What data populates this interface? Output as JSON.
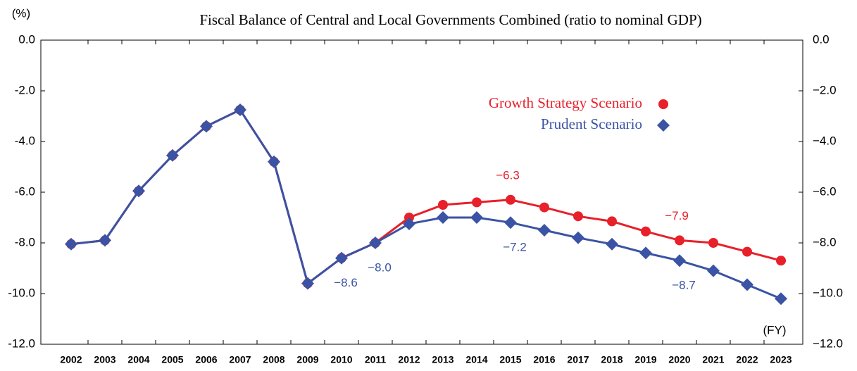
{
  "chart_data": {
    "type": "line",
    "title": "Fiscal Balance of Central and Local Governments Combined (ratio to nominal GDP)",
    "y_unit_label": "(%)",
    "x_unit_label": "(FY)",
    "categories": [
      "2002",
      "2003",
      "2004",
      "2005",
      "2006",
      "2007",
      "2008",
      "2009",
      "2010",
      "2011",
      "2012",
      "2013",
      "2014",
      "2015",
      "2016",
      "2017",
      "2018",
      "2019",
      "2020",
      "2021",
      "2022",
      "2023"
    ],
    "series": [
      {
        "name": "Growth Strategy Scenario",
        "color": "#e8202a",
        "marker": "circle",
        "values": [
          -8.05,
          -7.9,
          -5.95,
          -4.55,
          -3.4,
          -2.75,
          -4.8,
          -9.6,
          -8.6,
          -8.0,
          -7.0,
          -6.5,
          -6.4,
          -6.3,
          -6.6,
          -6.95,
          -7.15,
          -7.55,
          -7.9,
          -8.0,
          -8.35,
          -8.7
        ],
        "value_labels": [
          null,
          null,
          null,
          null,
          null,
          null,
          null,
          null,
          null,
          null,
          null,
          null,
          null,
          "−6.3",
          null,
          null,
          null,
          null,
          "−7.9",
          null,
          null,
          null
        ]
      },
      {
        "name": "Prudent Scenario",
        "color": "#3a53a4",
        "marker": "diamond",
        "values": [
          -8.05,
          -7.9,
          -5.95,
          -4.55,
          -3.4,
          -2.75,
          -4.8,
          -9.6,
          -8.6,
          -8.0,
          -7.25,
          -7.0,
          -7.0,
          -7.2,
          -7.5,
          -7.8,
          -8.05,
          -8.4,
          -8.7,
          -9.1,
          -9.65,
          -10.2
        ],
        "value_labels": [
          null,
          null,
          null,
          null,
          null,
          null,
          null,
          null,
          "−8.6",
          "−8.0",
          null,
          null,
          null,
          "−7.2",
          null,
          null,
          null,
          null,
          "−8.7",
          null,
          null,
          null
        ]
      }
    ],
    "ylim": [
      -12,
      0
    ],
    "yticks": [
      {
        "value": 0,
        "label": "0.0"
      },
      {
        "value": -2,
        "label": "-2.0"
      },
      {
        "value": -4,
        "label": "-4.0"
      },
      {
        "value": -6,
        "label": "-6.0"
      },
      {
        "value": -8,
        "label": "-8.0"
      },
      {
        "value": -10,
        "label": "-10.0"
      },
      {
        "value": -12,
        "label": "-12.0"
      }
    ],
    "y2lim": [
      -12,
      0
    ],
    "y2ticks": [
      {
        "value": 0,
        "label": "0.0"
      },
      {
        "value": -2,
        "label": "−2.0"
      },
      {
        "value": -4,
        "label": "−4.0"
      },
      {
        "value": -6,
        "label": "−6.0"
      },
      {
        "value": -8,
        "label": "−8.0"
      },
      {
        "value": -10,
        "label": "−10.0"
      },
      {
        "value": -12,
        "label": "−12.0"
      }
    ],
    "grid": false,
    "legend": "upper right"
  }
}
